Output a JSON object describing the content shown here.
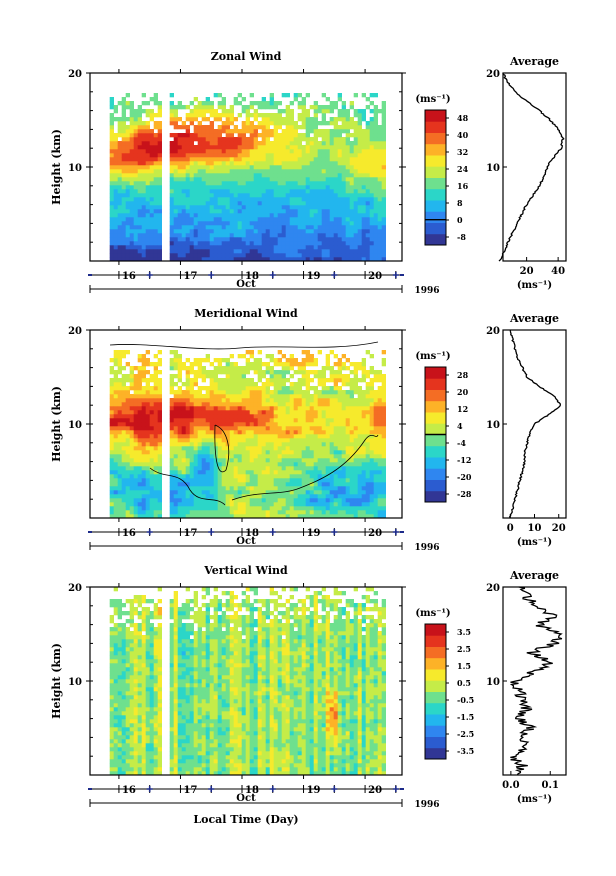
{
  "chart_data": [
    {
      "type": "heatmap",
      "title": "Zonal Wind",
      "ylabel": "Height (km)",
      "xlabel": "",
      "x_ticks": [
        "16",
        "17",
        "18",
        "19",
        "20"
      ],
      "month": "Oct",
      "year": "1996",
      "ylim": [
        0,
        20
      ],
      "y_ticks": [
        "20",
        "10"
      ],
      "colorbar": {
        "unit": "(ms⁻¹)",
        "levels": [
          "48",
          "40",
          "32",
          "24",
          "16",
          "8",
          "0",
          "-8"
        ],
        "range": [
          -12,
          52
        ]
      },
      "field": {
        "t_start": 15.85,
        "t_end": 20.3,
        "gap_t": [
          16.72,
          16.82
        ],
        "top_km": 17.6,
        "base_low": 0,
        "base_high": 24,
        "jet_amp": 28,
        "jet_center": 11.3,
        "jet_width": 2.8,
        "jet_shift": 1.6,
        "upper_amp": -12,
        "noise": 5,
        "isoline": 0
      },
      "average": {
        "title": "Average",
        "xlabel": "(ms⁻¹)",
        "x_ticks": [
          20,
          40
        ],
        "xlim": [
          5,
          45
        ],
        "profile": [
          [
            3,
            0
          ],
          [
            6,
            1
          ],
          [
            8,
            2
          ],
          [
            11,
            3
          ],
          [
            14,
            4
          ],
          [
            17,
            5
          ],
          [
            20,
            6
          ],
          [
            24,
            7
          ],
          [
            28,
            8
          ],
          [
            31,
            9
          ],
          [
            33,
            10
          ],
          [
            37,
            11
          ],
          [
            42,
            12
          ],
          [
            43,
            13
          ],
          [
            40,
            14
          ],
          [
            35,
            15
          ],
          [
            28,
            16
          ],
          [
            20,
            17
          ],
          [
            13,
            18
          ],
          [
            8,
            19
          ],
          [
            5,
            20
          ]
        ]
      }
    },
    {
      "type": "heatmap",
      "title": "Meridional Wind",
      "ylabel": "Height (km)",
      "xlabel": "",
      "x_ticks": [
        "16",
        "17",
        "18",
        "19",
        "20"
      ],
      "month": "Oct",
      "year": "1996",
      "ylim": [
        0,
        20
      ],
      "y_ticks": [
        "20",
        "10"
      ],
      "colorbar": {
        "unit": "(ms⁻¹)",
        "levels": [
          "28",
          "20",
          "12",
          "4",
          "-4",
          "-12",
          "-20",
          "-28"
        ],
        "range": [
          -32,
          32
        ]
      },
      "field": {
        "t_start": 15.85,
        "t_end": 20.3,
        "gap_t": [
          16.72,
          16.82
        ],
        "top_km": 17.8,
        "base_low": 2,
        "base_high": 6,
        "jet_amp": 20,
        "jet_center": 10.8,
        "jet_width": 2.4,
        "jet_shift": 0,
        "upper_amp": 4,
        "noise": 7,
        "isoline": 0
      },
      "average": {
        "title": "Average",
        "xlabel": "(ms⁻¹)",
        "x_ticks": [
          0,
          10,
          20
        ],
        "xlim": [
          -3,
          23
        ],
        "profile": [
          [
            0,
            0
          ],
          [
            1,
            1
          ],
          [
            2,
            2
          ],
          [
            3,
            3
          ],
          [
            4,
            4
          ],
          [
            5,
            5
          ],
          [
            6,
            6
          ],
          [
            6,
            7
          ],
          [
            7,
            8
          ],
          [
            8,
            9
          ],
          [
            10,
            10
          ],
          [
            16,
            11
          ],
          [
            21,
            12
          ],
          [
            18,
            13
          ],
          [
            12,
            14
          ],
          [
            7,
            15
          ],
          [
            5,
            16
          ],
          [
            3,
            17
          ],
          [
            2,
            18
          ],
          [
            1,
            19
          ],
          [
            0,
            20
          ]
        ]
      }
    },
    {
      "type": "heatmap",
      "title": "Vertical Wind",
      "ylabel": "Height (km)",
      "xlabel": "Local Time (Day)",
      "x_ticks": [
        "16",
        "17",
        "18",
        "19",
        "20"
      ],
      "month": "Oct",
      "year": "1996",
      "ylim": [
        0,
        20
      ],
      "y_ticks": [
        "20",
        "10"
      ],
      "colorbar": {
        "unit": "(ms⁻¹)",
        "levels": [
          "3.5",
          "2.5",
          "1.5",
          "0.5",
          "-0.5",
          "-1.5",
          "-2.5",
          "-3.5"
        ],
        "range": [
          -4,
          4
        ]
      },
      "field": {
        "t_start": 15.85,
        "t_end": 20.3,
        "gap_t": [
          16.72,
          16.82
        ],
        "top_km": 19.6,
        "base_low": 0,
        "base_high": 0,
        "jet_amp": 0,
        "jet_center": 10,
        "jet_width": 3,
        "jet_shift": 0,
        "upper_amp": 0,
        "noise": 0.55,
        "isoline": null
      },
      "average": {
        "title": "Average",
        "xlabel": "(ms⁻¹)",
        "x_ticks": [
          0.0,
          0.1
        ],
        "xlim": [
          -0.02,
          0.14
        ],
        "profile": [
          [
            0.01,
            0
          ],
          [
            0.03,
            1
          ],
          [
            0.0,
            2
          ],
          [
            0.04,
            3
          ],
          [
            0.02,
            4
          ],
          [
            0.05,
            5
          ],
          [
            0.02,
            6
          ],
          [
            0.04,
            7
          ],
          [
            0.03,
            8
          ],
          [
            0.02,
            9
          ],
          [
            0.01,
            10
          ],
          [
            0.06,
            11
          ],
          [
            0.1,
            12
          ],
          [
            0.05,
            13
          ],
          [
            0.11,
            14
          ],
          [
            0.13,
            15
          ],
          [
            0.07,
            16
          ],
          [
            0.11,
            17
          ],
          [
            0.06,
            18
          ],
          [
            0.04,
            19
          ],
          [
            0.02,
            20
          ]
        ]
      }
    }
  ],
  "colors": {
    "scale": [
      "#313695",
      "#2b5cd0",
      "#2f86f0",
      "#22b6ee",
      "#2bd6c8",
      "#6ee08e",
      "#c5ec48",
      "#f6ea2c",
      "#fdb227",
      "#f46d24",
      "#e5341e",
      "#c8121a"
    ],
    "axis": "#000000",
    "tick_marker": "#1d2b8a"
  }
}
